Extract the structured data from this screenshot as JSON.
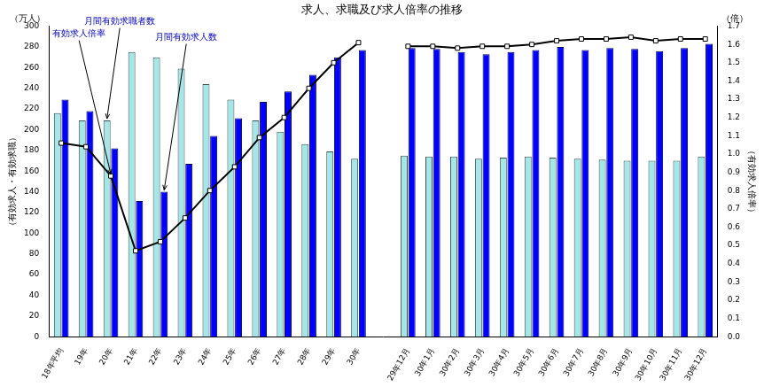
{
  "chart_data": {
    "type": "bar",
    "title": "求人、求職及び求人倍率の推移",
    "y_label": "（有効求人・有効求職）",
    "y_unit": "（万人）",
    "y2_label": "（有効求人倍率）",
    "y2_unit": "（倍）",
    "categories": [
      "18年平均",
      "19年",
      "20年",
      "21年",
      "22年",
      "23年",
      "24年",
      "25年",
      "26年",
      "27年",
      "28年",
      "29年",
      "30年",
      null,
      "29年12月",
      "30年1月",
      "30年2月",
      "30年3月",
      "30年4月",
      "30年5月",
      "30年6月",
      "30年7月",
      "30年8月",
      "30年9月",
      "30年10月",
      "30年11月",
      "30年12月"
    ],
    "series": [
      {
        "name": "月間有効求職者数",
        "type": "bar",
        "color": "#a6e6e6",
        "values": [
          216,
          209,
          209,
          275,
          270,
          259,
          244,
          229,
          209,
          198,
          186,
          179,
          172,
          null,
          175,
          174,
          174,
          172,
          173,
          174,
          173,
          172,
          171,
          170,
          170,
          170,
          174
        ]
      },
      {
        "name": "月間有効求人数",
        "type": "bar",
        "color": "#0000ff",
        "values": [
          229,
          218,
          182,
          131,
          140,
          167,
          194,
          211,
          227,
          237,
          253,
          270,
          277,
          null,
          279,
          278,
          275,
          273,
          275,
          277,
          280,
          277,
          279,
          278,
          276,
          279,
          283
        ]
      },
      {
        "name": "有効求人倍率",
        "type": "line",
        "axis": "y2",
        "color": "#000000",
        "marker": "square",
        "values": [
          1.06,
          1.04,
          0.88,
          0.47,
          0.52,
          0.65,
          0.8,
          0.93,
          1.09,
          1.2,
          1.36,
          1.5,
          1.61,
          null,
          1.59,
          1.59,
          1.58,
          1.59,
          1.59,
          1.6,
          1.62,
          1.63,
          1.63,
          1.64,
          1.62,
          1.63,
          1.63
        ]
      }
    ],
    "annotations": [
      "有効求人倍率",
      "月間有効求職者数",
      "月間有効求人数"
    ],
    "ylim": [
      0,
      300
    ],
    "yticks": [
      0,
      20,
      40,
      60,
      80,
      100,
      120,
      140,
      160,
      180,
      200,
      220,
      240,
      260,
      280,
      300
    ],
    "y2lim": [
      0,
      1.7
    ],
    "y2ticks": [
      {
        "value": 0,
        "label": "0.0"
      },
      {
        "value": 0.1,
        "label": "0.1"
      },
      {
        "value": 0.2,
        "label": "0.2"
      },
      {
        "value": 0.3,
        "label": "0.3"
      },
      {
        "value": 0.4,
        "label": "0.4"
      },
      {
        "value": 0.5,
        "label": "0.5"
      },
      {
        "value": 0.6,
        "label": "0.6"
      },
      {
        "value": 0.7,
        "label": "0.7"
      },
      {
        "value": 0.8,
        "label": "0.8"
      },
      {
        "value": 0.9,
        "label": "0.9"
      },
      {
        "value": 1,
        "label": "1.0"
      },
      {
        "value": 1.1,
        "label": "1.1"
      },
      {
        "value": 1.2,
        "label": "1.2"
      },
      {
        "value": 1.3,
        "label": "1.3"
      },
      {
        "value": 1.4,
        "label": "1.4"
      },
      {
        "value": 1.5,
        "label": "1.5"
      },
      {
        "value": 1.6,
        "label": "1.6"
      },
      {
        "value": 1.7,
        "label": "1.7"
      }
    ],
    "grid": false
  }
}
